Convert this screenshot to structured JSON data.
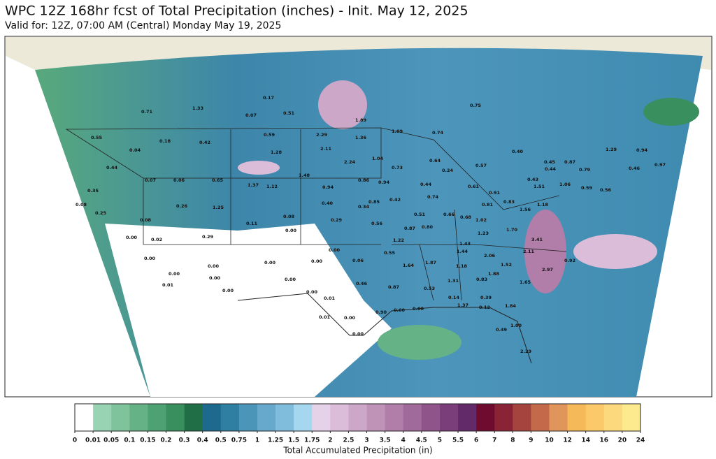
{
  "header": {
    "title": "WPC 12Z 168hr fcst of Total Precipitation (inches) - Init. May 12, 2025",
    "subtitle": "Valid for: 12Z, 07:00 AM (Central) Monday May 19, 2025"
  },
  "map_labels": [
    "0.71",
    "1.33",
    "0.17",
    "0.07",
    "0.51",
    "1.89",
    "0.75",
    "0.59",
    "2.29",
    "1.36",
    "1.09",
    "0.74",
    "0.55",
    "0.18",
    "0.42",
    "1.28",
    "2.11",
    "0.04",
    "1.04",
    "0.40",
    "0.64",
    "0.57",
    "2.24",
    "0.73",
    "0.24",
    "0.44",
    "1.48",
    "0.86",
    "0.94",
    "0.44",
    "0.07",
    "0.06",
    "0.65",
    "1.37",
    "1.12",
    "0.94",
    "0.61",
    "0.91",
    "0.83",
    "0.43",
    "1.51",
    "1.06",
    "0.59",
    "0.56",
    "0.35",
    "0.08",
    "0.26",
    "1.25",
    "0.40",
    "0.85",
    "0.42",
    "0.74",
    "0.34",
    "1.18",
    "0.81",
    "1.56",
    "0.25",
    "0.08",
    "0.29",
    "0.56",
    "0.51",
    "0.66",
    "0.68",
    "1.02",
    "0.08",
    "0.11",
    "0.00",
    "0.87",
    "0.80",
    "1.23",
    "1.70",
    "0.00",
    "0.02",
    "0.29",
    "1.22",
    "1.43",
    "3.41",
    "0.00",
    "0.55",
    "1.44",
    "2.11",
    "2.06",
    "0.00",
    "0.00",
    "0.00",
    "0.00",
    "0.06",
    "1.64",
    "1.87",
    "1.18",
    "1.52",
    "1.88",
    "2.97",
    "0.92",
    "0.00",
    "0.00",
    "0.00",
    "0.46",
    "0.87",
    "0.53",
    "1.31",
    "0.83",
    "1.65",
    "0.01",
    "0.00",
    "0.00",
    "0.01",
    "0.14",
    "0.39",
    "0.90",
    "0.00",
    "0.00",
    "1.37",
    "0.12",
    "1.84",
    "0.01",
    "0.00",
    "1.00",
    "0.49",
    "0.00",
    "2.29",
    "1.29",
    "0.94",
    "0.45",
    "0.44",
    "0.87",
    "0.79",
    "0.46",
    "0.97"
  ],
  "colorbar": {
    "title": "Total Accumulated Precipitation (in)",
    "ticks": [
      0,
      0.01,
      0.05,
      0.1,
      0.15,
      0.2,
      0.3,
      0.4,
      0.5,
      0.75,
      1,
      1.25,
      1.5,
      1.75,
      2,
      2.5,
      3,
      3.5,
      4,
      4.5,
      5,
      5.5,
      6,
      7,
      8,
      9,
      10,
      12,
      14,
      16,
      20,
      24
    ],
    "colors": [
      "#ffffff",
      "#98d4b4",
      "#7fc39d",
      "#66b287",
      "#4ea173",
      "#3a8f5f",
      "#1f6e45",
      "#1e6a8f",
      "#2f7fa3",
      "#4b95b9",
      "#66a9cd",
      "#80bcdc",
      "#a5d8ef",
      "#e6d2e8",
      "#dbbcd9",
      "#cda7c8",
      "#bf92b8",
      "#b07ea9",
      "#a06a9a",
      "#8f558b",
      "#7a3f7b",
      "#622a68",
      "#6e0b2e",
      "#8b2336",
      "#a5443e",
      "#c46a4a",
      "#e0965a",
      "#f5b95a",
      "#fbc96a",
      "#fcd97c",
      "#fde98e"
    ]
  }
}
